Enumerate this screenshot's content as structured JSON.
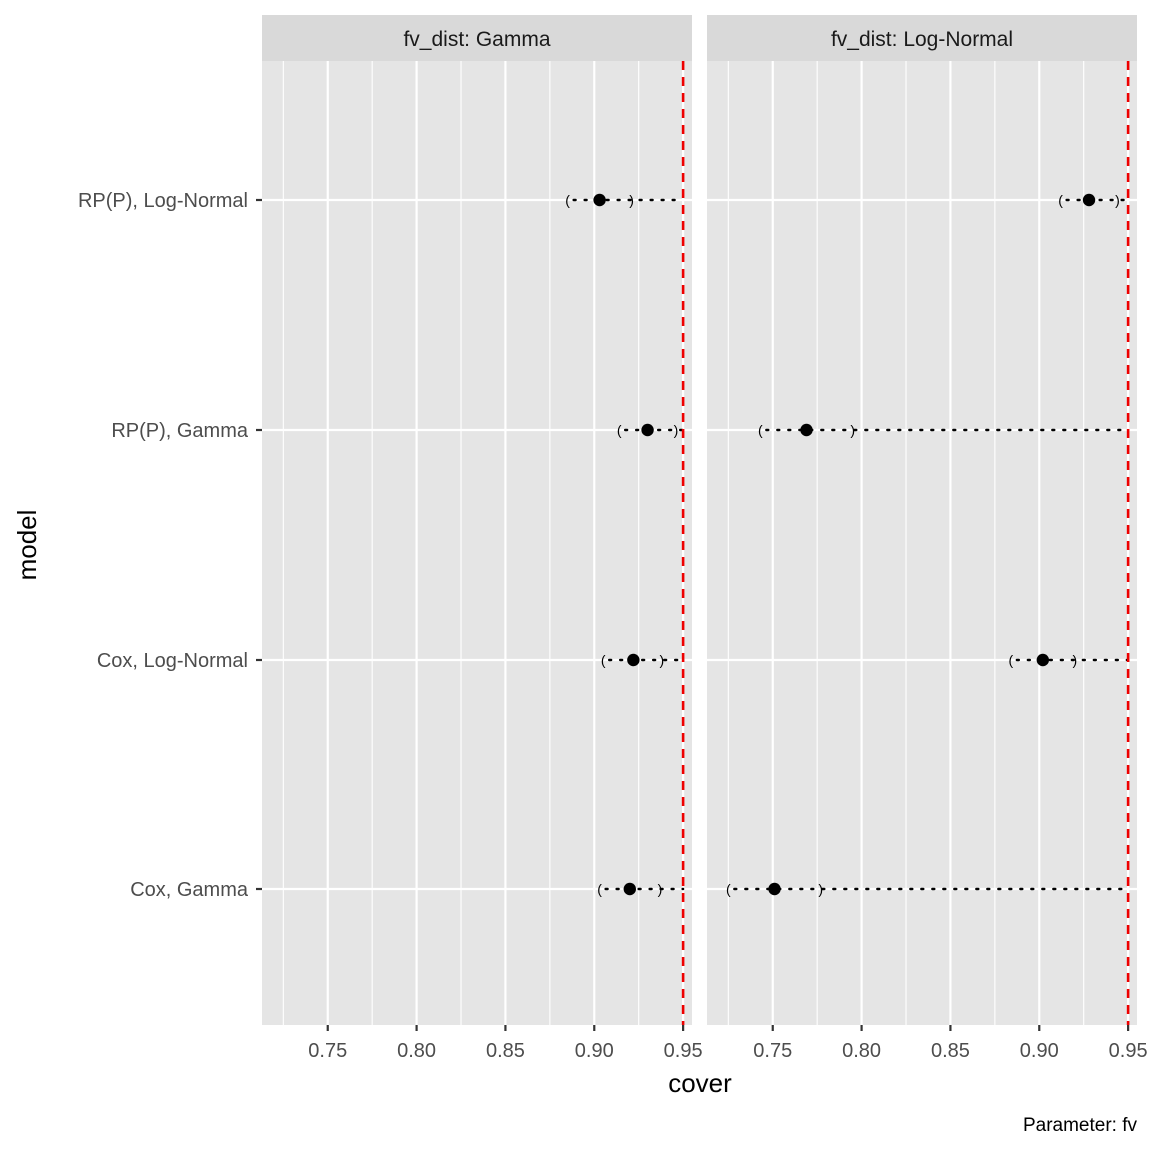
{
  "chart_data": {
    "type": "scatter",
    "facet_label_prefix": "fv_dist: ",
    "panels": [
      {
        "facet": "Gamma",
        "points": [
          {
            "model": "RP(P), Log-Normal",
            "cover": 0.903,
            "lower": 0.885,
            "upper": 0.921
          },
          {
            "model": "RP(P), Gamma",
            "cover": 0.93,
            "lower": 0.914,
            "upper": 0.946
          },
          {
            "model": "Cox, Log-Normal",
            "cover": 0.922,
            "lower": 0.905,
            "upper": 0.938
          },
          {
            "model": "Cox, Gamma",
            "cover": 0.92,
            "lower": 0.903,
            "upper": 0.937
          }
        ]
      },
      {
        "facet": "Log-Normal",
        "points": [
          {
            "model": "RP(P), Log-Normal",
            "cover": 0.928,
            "lower": 0.912,
            "upper": 0.944
          },
          {
            "model": "RP(P), Gamma",
            "cover": 0.769,
            "lower": 0.743,
            "upper": 0.795
          },
          {
            "model": "Cox, Log-Normal",
            "cover": 0.902,
            "lower": 0.884,
            "upper": 0.92
          },
          {
            "model": "Cox, Gamma",
            "cover": 0.751,
            "lower": 0.725,
            "upper": 0.777
          }
        ]
      }
    ],
    "categories": [
      "Cox, Gamma",
      "Cox, Log-Normal",
      "RP(P), Gamma",
      "RP(P), Log-Normal"
    ],
    "reference_line": {
      "value": 0.95,
      "color": "#ee0000",
      "style": "dashed"
    },
    "xlabel": "cover",
    "ylabel": "model",
    "xlim": [
      0.713,
      0.955
    ],
    "xticks": [
      "0.75",
      "0.80",
      "0.85",
      "0.90",
      "0.95"
    ],
    "xtick_values": [
      0.75,
      0.8,
      0.85,
      0.9,
      0.95
    ],
    "caption": "Parameter: fv",
    "grid": true,
    "legend": "none"
  }
}
